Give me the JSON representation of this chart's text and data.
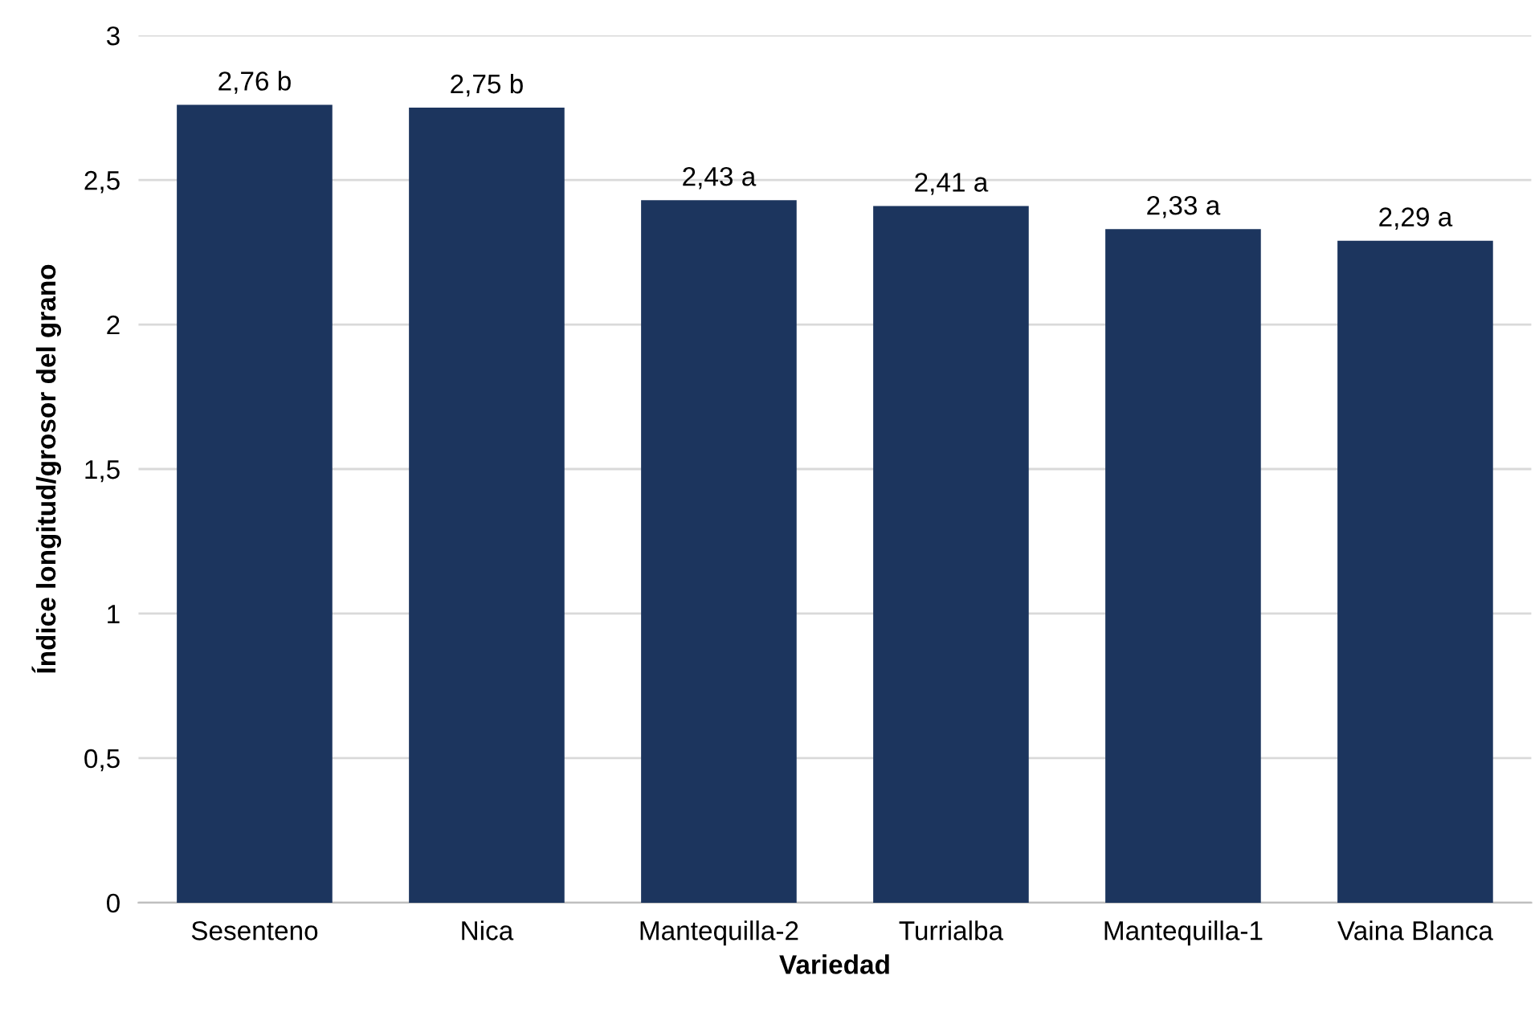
{
  "chart_data": {
    "type": "bar",
    "xlabel": "Variedad",
    "ylabel": "Índice longitud/grosor del grano",
    "categories": [
      "Sesenteno",
      "Nica",
      "Mantequilla-2",
      "Turrialba",
      "Mantequilla-1",
      "Vaina Blanca"
    ],
    "values": [
      2.76,
      2.75,
      2.43,
      2.41,
      2.33,
      2.29
    ],
    "value_labels": [
      "2,76 b",
      "2,75 b",
      "2,43 a",
      "2,41 a",
      "2,33 a",
      "2,29 a"
    ],
    "color": "#1c355e",
    "ylim": [
      0,
      3
    ],
    "yticks": [
      0,
      {
        "value": 0.5,
        "label": "0,5"
      },
      1,
      {
        "value": 1.5,
        "label": "1,5"
      },
      2,
      {
        "value": 2.5,
        "label": "2,5"
      },
      3
    ],
    "grid": "y"
  }
}
